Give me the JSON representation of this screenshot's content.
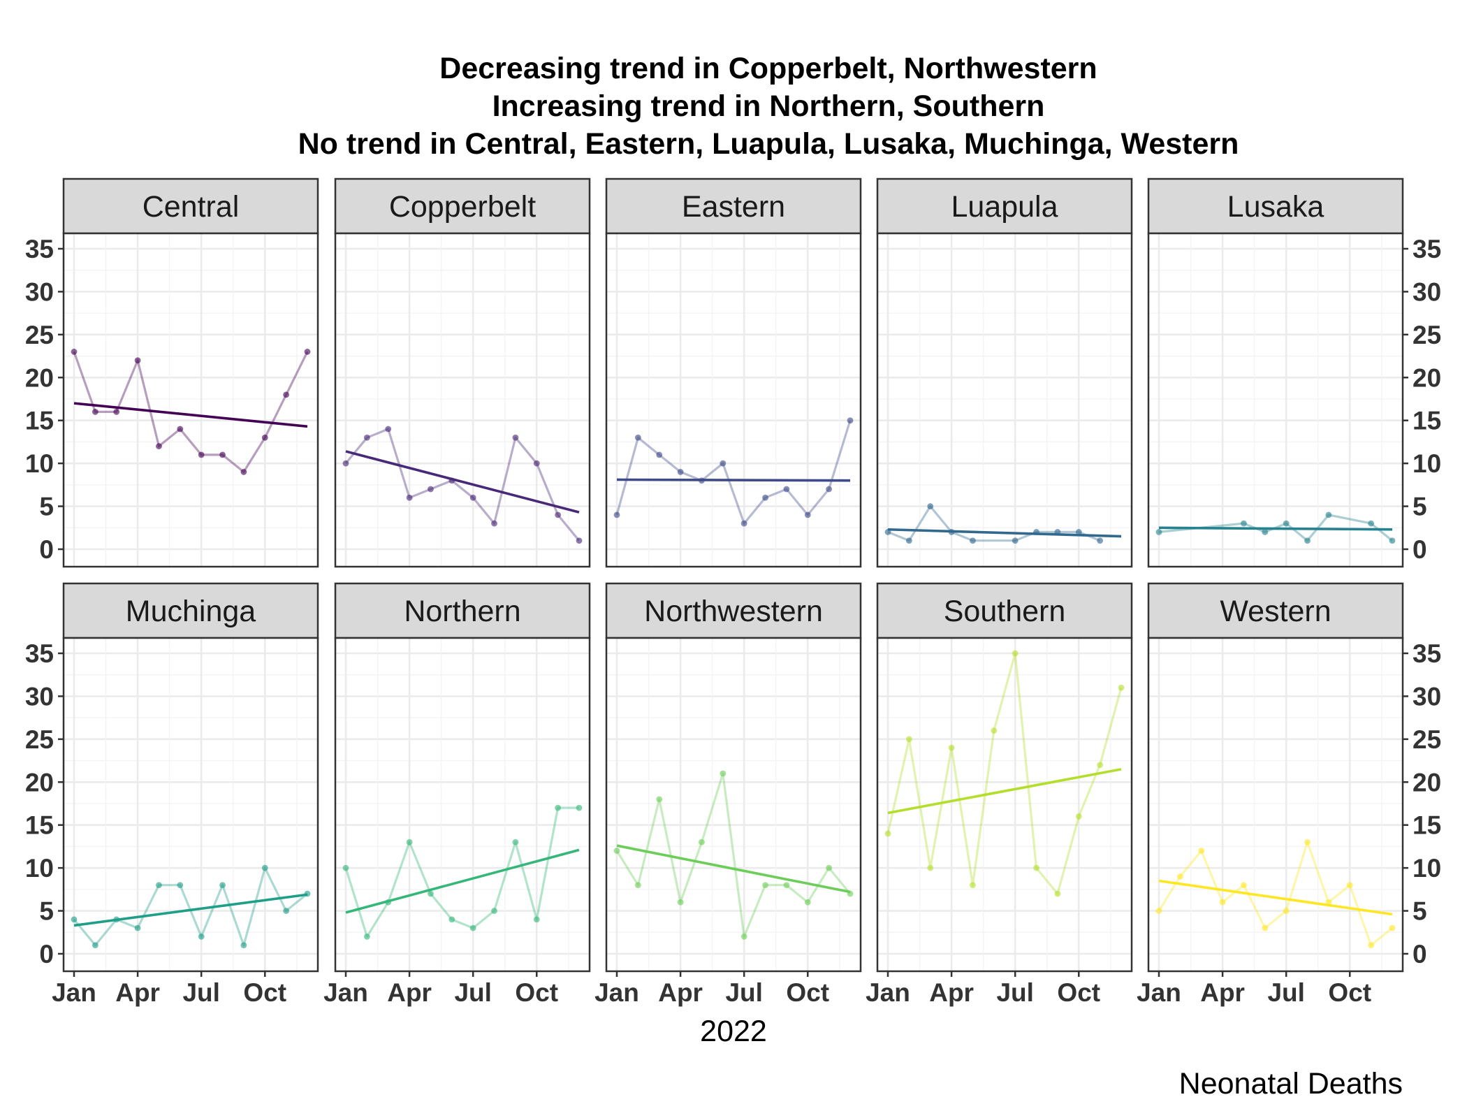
{
  "chart_data": {
    "type": "line",
    "title_lines": [
      "Decreasing trend in Copperbelt, Northwestern",
      "Increasing trend in Northern, Southern",
      "No trend in Central, Eastern, Luapula, Lusaka, Muchinga, Western"
    ],
    "xlabel": "2022",
    "caption": "Neonatal Deaths",
    "x_ticks": [
      "Jan",
      "Apr",
      "Jul",
      "Oct"
    ],
    "x_tick_months": [
      1,
      4,
      7,
      10
    ],
    "y_ticks": [
      0,
      5,
      10,
      15,
      20,
      25,
      30,
      35
    ],
    "ylim": [
      0,
      35
    ],
    "xlim_months": [
      1,
      12
    ],
    "facet_layout": "2 rows x 5 columns",
    "series": [
      {
        "name": "Central",
        "color": "#440154",
        "months": [
          1,
          2,
          3,
          4,
          5,
          6,
          7,
          8,
          9,
          10,
          11,
          12
        ],
        "values": [
          23,
          16,
          16,
          22,
          12,
          14,
          11,
          11,
          9,
          13,
          18,
          23
        ],
        "trend": [
          17.0,
          14.3
        ]
      },
      {
        "name": "Copperbelt",
        "color": "#482878",
        "months": [
          1,
          2,
          3,
          4,
          5,
          6,
          7,
          8,
          9,
          10,
          11,
          12
        ],
        "values": [
          10,
          13,
          14,
          6,
          7,
          8,
          6,
          3,
          13,
          10,
          4,
          1
        ],
        "trend": [
          11.4,
          4.3
        ]
      },
      {
        "name": "Eastern",
        "color": "#3E4A89",
        "months": [
          1,
          2,
          3,
          4,
          5,
          6,
          7,
          8,
          9,
          10,
          11,
          12
        ],
        "values": [
          4,
          13,
          11,
          9,
          8,
          10,
          3,
          6,
          7,
          4,
          7,
          15
        ],
        "trend": [
          8.1,
          8.0
        ]
      },
      {
        "name": "Luapula",
        "color": "#31688E",
        "months": [
          1,
          2,
          3,
          4,
          5,
          7,
          8,
          9,
          10,
          11
        ],
        "values": [
          2,
          1,
          5,
          2,
          1,
          1,
          2,
          2,
          2,
          1
        ],
        "trend": [
          2.3,
          1.5
        ]
      },
      {
        "name": "Lusaka",
        "color": "#26828E",
        "months": [
          1,
          5,
          6,
          7,
          8,
          9,
          11,
          12
        ],
        "values": [
          2,
          3,
          2,
          3,
          1,
          4,
          3,
          1
        ],
        "trend": [
          2.5,
          2.3
        ]
      },
      {
        "name": "Muchinga",
        "color": "#1F9E89",
        "months": [
          1,
          2,
          3,
          4,
          5,
          6,
          7,
          8,
          9,
          10,
          11,
          12
        ],
        "values": [
          4,
          1,
          4,
          3,
          8,
          8,
          2,
          8,
          1,
          10,
          5,
          7
        ],
        "trend": [
          3.3,
          6.9
        ]
      },
      {
        "name": "Northern",
        "color": "#35B779",
        "months": [
          1,
          2,
          3,
          4,
          5,
          6,
          7,
          8,
          9,
          10,
          11,
          12
        ],
        "values": [
          10,
          2,
          6,
          13,
          7,
          4,
          3,
          5,
          13,
          4,
          17,
          17
        ],
        "trend": [
          4.8,
          12.1
        ]
      },
      {
        "name": "Northwestern",
        "color": "#6DCD59",
        "months": [
          1,
          2,
          3,
          4,
          5,
          6,
          7,
          8,
          9,
          10,
          11,
          12
        ],
        "values": [
          12,
          8,
          18,
          6,
          13,
          21,
          2,
          8,
          8,
          6,
          10,
          7
        ],
        "trend": [
          12.6,
          7.2
        ]
      },
      {
        "name": "Southern",
        "color": "#B4DE2C",
        "months": [
          1,
          2,
          3,
          4,
          5,
          6,
          7,
          8,
          9,
          10,
          11,
          12
        ],
        "values": [
          14,
          25,
          10,
          24,
          8,
          26,
          35,
          10,
          7,
          16,
          22,
          31
        ],
        "trend": [
          16.4,
          21.5
        ]
      },
      {
        "name": "Western",
        "color": "#FDE725",
        "months": [
          1,
          2,
          3,
          4,
          5,
          6,
          7,
          8,
          9,
          10,
          11,
          12
        ],
        "values": [
          5,
          9,
          12,
          6,
          8,
          3,
          5,
          13,
          6,
          8,
          1,
          3
        ],
        "trend": [
          8.5,
          4.6
        ]
      }
    ]
  }
}
